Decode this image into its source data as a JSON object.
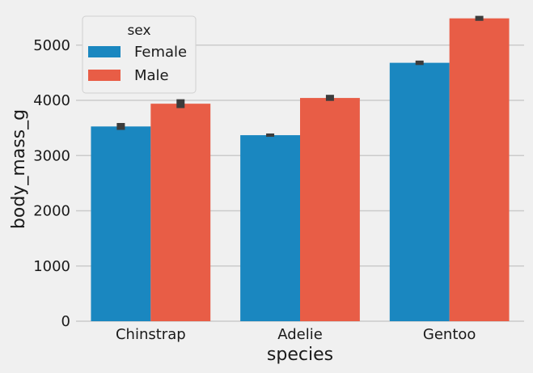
{
  "chart_data": {
    "type": "bar",
    "xlabel": "species",
    "ylabel": "body_mass_g",
    "categories": [
      "Chinstrap",
      "Adelie",
      "Gentoo"
    ],
    "ylim": [
      0,
      5700
    ],
    "yticks": [
      0,
      1000,
      2000,
      3000,
      4000,
      5000
    ],
    "grid": "horizontal",
    "legend": {
      "title": "sex",
      "placement": "upper-left"
    },
    "series": [
      {
        "name": "Female",
        "color": "#1a87c0",
        "values": [
          3527,
          3369,
          4680
        ],
        "error": [
          [
            3465,
            3590
          ],
          [
            3340,
            3400
          ],
          [
            4640,
            4720
          ]
        ]
      },
      {
        "name": "Male",
        "color": "#e85d46",
        "values": [
          3939,
          4043,
          5485
        ],
        "error": [
          [
            3860,
            4020
          ],
          [
            3990,
            4100
          ],
          [
            5440,
            5530
          ]
        ]
      }
    ],
    "errorbar_color": "#3c3c3c"
  }
}
